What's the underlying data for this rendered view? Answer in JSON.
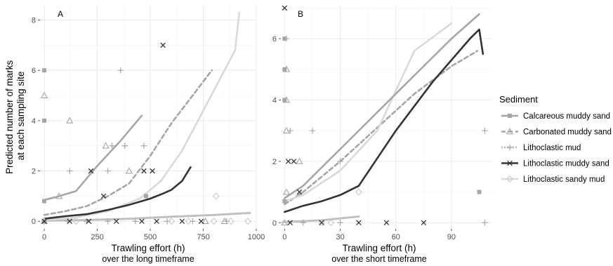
{
  "ylabel": [
    "Predicted number of marks",
    "at each sampling site"
  ],
  "legend": {
    "title": "Sediment",
    "placement": "right",
    "items": [
      {
        "label": "Calcareous muddy sand",
        "color": "#a6a6a6",
        "linestyle": "solid",
        "marker": "square"
      },
      {
        "label": "Carbonated muddy sand",
        "color": "#a6a6a6",
        "linestyle": "dashed",
        "marker": "triangle"
      },
      {
        "label": "Lithoclastic mud",
        "color": "#bfbfbf",
        "linestyle": "dotted",
        "marker": "plus"
      },
      {
        "label": "Lithoclastic muddy sand",
        "color": "#333333",
        "linestyle": "solid",
        "marker": "cross"
      },
      {
        "label": "Lithoclastic sandy mud",
        "color": "#d9d9d9",
        "linestyle": "solid",
        "marker": "diamond"
      }
    ]
  },
  "chart_data": [
    {
      "type": "line",
      "panel": "A",
      "xlabel": [
        "Trawling effort (h)",
        "over the long timeframe"
      ],
      "xticks": [
        0,
        250,
        500,
        750,
        1000
      ],
      "yticks": [
        0,
        2,
        4,
        6,
        8
      ],
      "xlim": [
        -20,
        1000
      ],
      "ylim": [
        -0.3,
        8.6
      ],
      "grid": true,
      "series": [
        {
          "name": "Calcareous muddy sand",
          "line": [
            [
              0,
              0.85
            ],
            [
              50,
              0.95
            ],
            [
              150,
              1.2
            ],
            [
              250,
              2.2
            ],
            [
              360,
              3.2
            ],
            [
              460,
              4.2
            ]
          ],
          "points": [
            [
              0,
              6
            ],
            [
              0,
              4
            ],
            [
              0,
              0.8
            ],
            [
              480,
              1.0
            ],
            [
              0,
              0
            ]
          ]
        },
        {
          "name": "Carbonated muddy sand",
          "line": [
            [
              0,
              0.25
            ],
            [
              100,
              0.4
            ],
            [
              200,
              0.6
            ],
            [
              300,
              1.0
            ],
            [
              400,
              1.5
            ],
            [
              500,
              2.6
            ],
            [
              600,
              3.9
            ],
            [
              700,
              5.0
            ],
            [
              790,
              6.0
            ]
          ],
          "points": [
            [
              0,
              5.0
            ],
            [
              70,
              1.0
            ],
            [
              120,
              4.0
            ],
            [
              290,
              3.0
            ],
            [
              400,
              2.0
            ],
            [
              760,
              0
            ],
            [
              850,
              0.0
            ],
            [
              0,
              0
            ]
          ]
        },
        {
          "name": "Lithoclastic mud",
          "line": [
            [
              0,
              0.02
            ],
            [
              200,
              0.05
            ],
            [
              400,
              0.1
            ],
            [
              600,
              0.18
            ],
            [
              800,
              0.25
            ],
            [
              970,
              0.33
            ]
          ],
          "points": [
            [
              360,
              6
            ],
            [
              320,
              3
            ],
            [
              380,
              3
            ],
            [
              470,
              3
            ],
            [
              120,
              2
            ],
            [
              300,
              2
            ],
            [
              110,
              0
            ],
            [
              200,
              0
            ],
            [
              300,
              0
            ],
            [
              430,
              0
            ],
            [
              580,
              0
            ],
            [
              700,
              0
            ],
            [
              860,
              0
            ]
          ]
        },
        {
          "name": "Lithoclastic muddy sand",
          "line": [
            [
              0,
              0.1
            ],
            [
              100,
              0.2
            ],
            [
              200,
              0.28
            ],
            [
              300,
              0.45
            ],
            [
              400,
              0.65
            ],
            [
              500,
              0.9
            ],
            [
              560,
              1.1
            ],
            [
              600,
              1.25
            ],
            [
              650,
              1.6
            ],
            [
              690,
              2.15
            ]
          ],
          "points": [
            [
              560,
              7.0
            ],
            [
              220,
              2.0
            ],
            [
              470,
              2.0
            ],
            [
              510,
              2.0
            ],
            [
              280,
              1.0
            ],
            [
              0,
              0
            ],
            [
              120,
              0
            ],
            [
              210,
              0
            ],
            [
              340,
              0
            ],
            [
              460,
              0
            ],
            [
              530,
              0
            ],
            [
              650,
              0
            ],
            [
              740,
              0
            ]
          ]
        },
        {
          "name": "Lithoclastic sandy mud",
          "line": [
            [
              0,
              0.05
            ],
            [
              150,
              0.15
            ],
            [
              300,
              0.4
            ],
            [
              450,
              0.9
            ],
            [
              550,
              1.6
            ],
            [
              650,
              2.8
            ],
            [
              750,
              4.4
            ],
            [
              850,
              6.0
            ],
            [
              900,
              6.8
            ],
            [
              920,
              8.3
            ]
          ],
          "points": [
            [
              810,
              1.0
            ],
            [
              150,
              0.0
            ],
            [
              600,
              0.0
            ],
            [
              680,
              0
            ],
            [
              800,
              0
            ],
            [
              880,
              0
            ],
            [
              960,
              0
            ],
            [
              0,
              0
            ]
          ]
        }
      ]
    },
    {
      "type": "line",
      "panel": "B",
      "xlabel": [
        "Trawling effort (h)",
        "over the short timeframe"
      ],
      "xticks": [
        0,
        30,
        60,
        90
      ],
      "yticks": [
        0,
        2,
        4,
        6
      ],
      "xlim": [
        -2,
        112
      ],
      "ylim": [
        -0.2,
        7.1
      ],
      "grid": true,
      "series": [
        {
          "name": "Calcareous muddy sand",
          "line": [
            [
              0,
              0.8
            ],
            [
              10,
              1.2
            ],
            [
              30,
              2.4
            ],
            [
              50,
              3.6
            ],
            [
              70,
              4.8
            ],
            [
              90,
              6.0
            ],
            [
              105,
              6.8
            ]
          ],
          "points": [
            [
              0,
              6
            ],
            [
              0,
              5
            ],
            [
              0,
              4
            ],
            [
              0,
              0.7
            ],
            [
              105,
              1.0
            ]
          ]
        },
        {
          "name": "Carbonated muddy sand",
          "line": [
            [
              0,
              0.6
            ],
            [
              10,
              1.0
            ],
            [
              30,
              2.0
            ],
            [
              50,
              3.1
            ],
            [
              70,
              4.2
            ],
            [
              90,
              5.1
            ],
            [
              104,
              5.6
            ]
          ],
          "points": [
            [
              1,
              5.0
            ],
            [
              1,
              4.0
            ],
            [
              1,
              3.0
            ],
            [
              1,
              1.0
            ],
            [
              8,
              2.0
            ],
            [
              0,
              0
            ]
          ]
        },
        {
          "name": "Lithoclastic mud",
          "line": [
            [
              0,
              0.02
            ],
            [
              20,
              0.08
            ],
            [
              40,
              0.2
            ]
          ],
          "points": [
            [
              1,
              6
            ],
            [
              3,
              3
            ],
            [
              15,
              3
            ],
            [
              30,
              2.0
            ],
            [
              108,
              3.0
            ],
            [
              10,
              0
            ],
            [
              30,
              0
            ],
            [
              108,
              0
            ]
          ]
        },
        {
          "name": "Lithoclastic muddy sand",
          "line": [
            [
              0,
              0.35
            ],
            [
              10,
              0.55
            ],
            [
              20,
              0.7
            ],
            [
              30,
              0.9
            ],
            [
              40,
              1.2
            ],
            [
              60,
              3.0
            ],
            [
              80,
              4.6
            ],
            [
              100,
              6.0
            ],
            [
              105,
              6.3
            ],
            [
              107,
              5.5
            ]
          ],
          "points": [
            [
              0,
              7.0
            ],
            [
              2,
              2.0
            ],
            [
              5,
              2.0
            ],
            [
              8,
              1.0
            ],
            [
              3,
              0
            ],
            [
              20,
              0
            ],
            [
              40,
              0
            ],
            [
              55,
              0
            ],
            [
              75,
              0
            ]
          ]
        },
        {
          "name": "Lithoclastic sandy mud",
          "line": [
            [
              0,
              0.7
            ],
            [
              10,
              0.9
            ],
            [
              30,
              1.7
            ],
            [
              50,
              3.0
            ],
            [
              70,
              5.6
            ],
            [
              90,
              6.5
            ]
          ],
          "points": [
            [
              40,
              1.0
            ],
            [
              20,
              0
            ],
            [
              25,
              0
            ],
            [
              0,
              0
            ]
          ]
        }
      ]
    }
  ]
}
